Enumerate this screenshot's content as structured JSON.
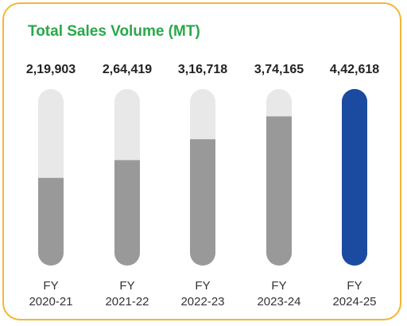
{
  "chart_data": {
    "type": "bar",
    "title": "Total Sales Volume (MT)",
    "xlabel": "",
    "ylabel": "",
    "categories": [
      [
        "FY",
        "2020-21"
      ],
      [
        "FY",
        "2021-22"
      ],
      [
        "FY",
        "2022-23"
      ],
      [
        "FY",
        "2023-24"
      ],
      [
        "FY",
        "2024-25"
      ]
    ],
    "values": [
      219903,
      264419,
      316718,
      374165,
      442618
    ],
    "value_labels": [
      "2,19,903",
      "2,64,419",
      "3,16,718",
      "3,74,165",
      "4,42,618"
    ],
    "ylim": [
      0,
      442618
    ],
    "grid": false,
    "legend": "none",
    "colors": {
      "track": "#e8e8e8",
      "fill": "#999999",
      "highlight": "#1a4ba0",
      "title": "#2aa84a",
      "border": "#f2b632"
    }
  }
}
